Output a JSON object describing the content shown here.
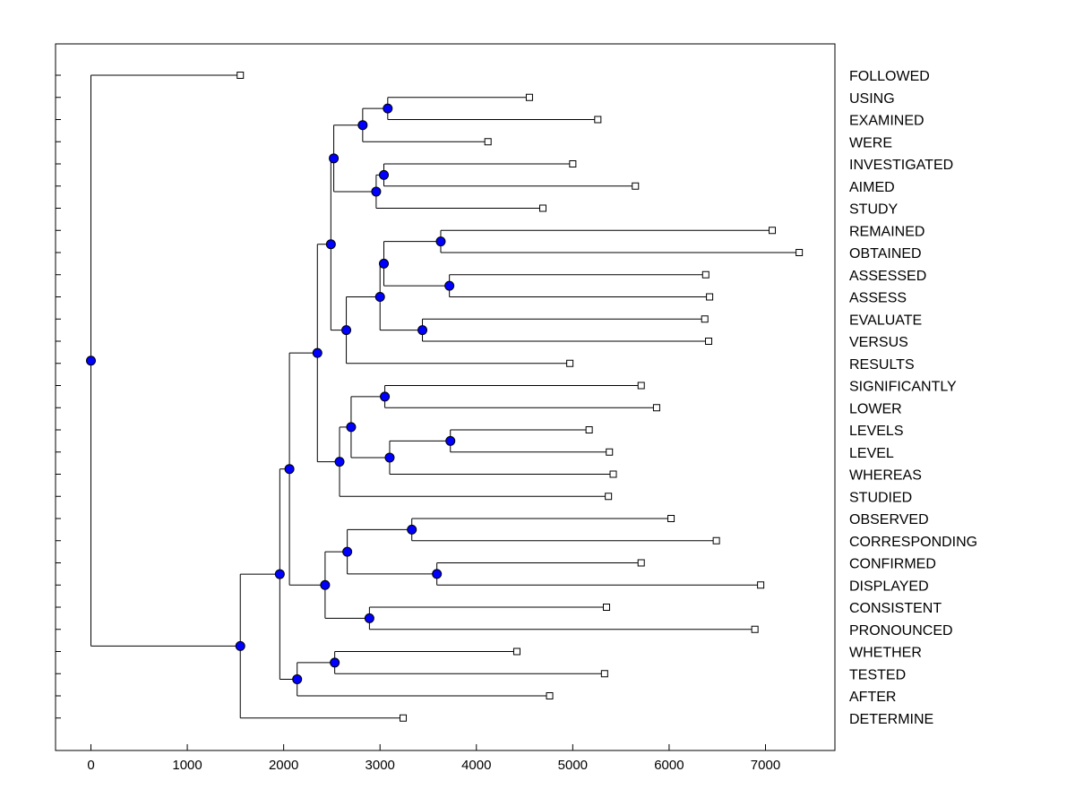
{
  "chart_data": {
    "type": "dendrogram",
    "title": "",
    "xlabel": "",
    "ylabel": "",
    "xlim": [
      -350,
      7750
    ],
    "xticks": [
      0,
      1000,
      2000,
      3000,
      4000,
      5000,
      6000,
      7000
    ],
    "xtick_labels": [
      "0",
      "1000",
      "2000",
      "3000",
      "4000",
      "5000",
      "6000",
      "7000"
    ],
    "colors": {
      "node_fill": "#0000ff",
      "line": "#000000",
      "leaf_fill": "#ffffff"
    },
    "leaves": [
      {
        "label": "FOLLOWED",
        "x": 1550
      },
      {
        "label": "USING",
        "x": 4550
      },
      {
        "label": "EXAMINED",
        "x": 5260
      },
      {
        "label": "WERE",
        "x": 4120
      },
      {
        "label": "INVESTIGATED",
        "x": 5000
      },
      {
        "label": "AIMED",
        "x": 5650
      },
      {
        "label": "STUDY",
        "x": 4690
      },
      {
        "label": "REMAINED",
        "x": 7070
      },
      {
        "label": "OBTAINED",
        "x": 7350
      },
      {
        "label": "ASSESSED",
        "x": 6380
      },
      {
        "label": "ASSESS",
        "x": 6420
      },
      {
        "label": "EVALUATE",
        "x": 6370
      },
      {
        "label": "VERSUS",
        "x": 6410
      },
      {
        "label": "RESULTS",
        "x": 4970
      },
      {
        "label": "SIGNIFICANTLY",
        "x": 5710
      },
      {
        "label": "LOWER",
        "x": 5870
      },
      {
        "label": "LEVELS",
        "x": 5170
      },
      {
        "label": "LEVEL",
        "x": 5380
      },
      {
        "label": "WHEREAS",
        "x": 5420
      },
      {
        "label": "STUDIED",
        "x": 5370
      },
      {
        "label": "OBSERVED",
        "x": 6020
      },
      {
        "label": "CORRESPONDING",
        "x": 6490
      },
      {
        "label": "CONFIRMED",
        "x": 5710
      },
      {
        "label": "DISPLAYED",
        "x": 6950
      },
      {
        "label": "CONSISTENT",
        "x": 5350
      },
      {
        "label": "PRONOUNCED",
        "x": 6890
      },
      {
        "label": "WHETHER",
        "x": 4420
      },
      {
        "label": "TESTED",
        "x": 5330
      },
      {
        "label": "AFTER",
        "x": 4760
      },
      {
        "label": "DETERMINE",
        "x": 3240
      }
    ],
    "merges": [
      {
        "id": "n1",
        "x": 3080,
        "children": [
          1,
          2
        ]
      },
      {
        "id": "n2",
        "x": 2820,
        "children": [
          "n1",
          3
        ]
      },
      {
        "id": "n3",
        "x": 3040,
        "children": [
          4,
          5
        ]
      },
      {
        "id": "n4",
        "x": 2960,
        "children": [
          "n3",
          6
        ]
      },
      {
        "id": "n5",
        "x": 2520,
        "children": [
          "n2",
          "n4"
        ]
      },
      {
        "id": "n6",
        "x": 3630,
        "children": [
          7,
          8
        ]
      },
      {
        "id": "n7",
        "x": 3720,
        "children": [
          9,
          10
        ]
      },
      {
        "id": "n8",
        "x": 3040,
        "children": [
          "n6",
          "n7"
        ]
      },
      {
        "id": "n9",
        "x": 3440,
        "children": [
          11,
          12
        ]
      },
      {
        "id": "n10",
        "x": 3000,
        "children": [
          "n8",
          "n9"
        ]
      },
      {
        "id": "n11",
        "x": 2650,
        "children": [
          "n10",
          13
        ]
      },
      {
        "id": "n12",
        "x": 2490,
        "children": [
          "n5",
          "n11"
        ]
      },
      {
        "id": "n13",
        "x": 3050,
        "children": [
          14,
          15
        ]
      },
      {
        "id": "n14",
        "x": 3730,
        "children": [
          16,
          17
        ]
      },
      {
        "id": "n15",
        "x": 3100,
        "children": [
          "n14",
          18
        ]
      },
      {
        "id": "n16",
        "x": 2700,
        "children": [
          "n13",
          "n15"
        ]
      },
      {
        "id": "n17",
        "x": 2580,
        "children": [
          "n16",
          19
        ]
      },
      {
        "id": "n18",
        "x": 2350,
        "children": [
          "n12",
          "n17"
        ]
      },
      {
        "id": "n19",
        "x": 3330,
        "children": [
          20,
          21
        ]
      },
      {
        "id": "n20",
        "x": 3590,
        "children": [
          22,
          23
        ]
      },
      {
        "id": "n21",
        "x": 2660,
        "children": [
          "n19",
          "n20"
        ]
      },
      {
        "id": "n22",
        "x": 2890,
        "children": [
          24,
          25
        ]
      },
      {
        "id": "n23",
        "x": 2430,
        "children": [
          "n21",
          "n22"
        ]
      },
      {
        "id": "n24",
        "x": 2060,
        "children": [
          "n18",
          "n23"
        ]
      },
      {
        "id": "n25",
        "x": 2530,
        "children": [
          26,
          27
        ]
      },
      {
        "id": "n26",
        "x": 2140,
        "children": [
          "n25",
          28
        ]
      },
      {
        "id": "n27",
        "x": 1960,
        "children": [
          "n24",
          "n26"
        ]
      },
      {
        "id": "n28",
        "x": 1550,
        "children": [
          "n27",
          29
        ]
      },
      {
        "id": "n29",
        "x": 0,
        "children": [
          0,
          "n28"
        ]
      }
    ]
  }
}
